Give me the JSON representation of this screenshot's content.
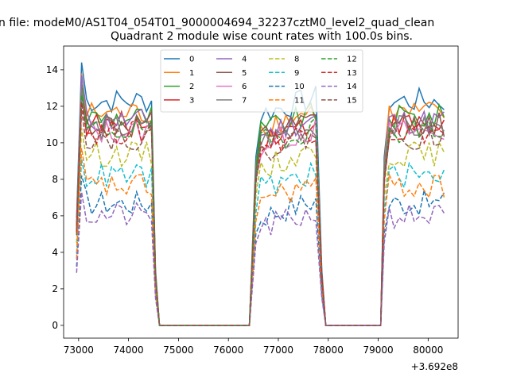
{
  "figure": {
    "suptitle": "n file: modeM0/AS1T04_054T01_9000004694_32237cztM0_level2_quad_clean",
    "title": "Quadrant 2 module wise count rates with 100.0s bins.",
    "offset_label": "+3.692e8"
  },
  "chart_data": {
    "type": "line",
    "xlim": [
      72700,
      80600
    ],
    "ylim": [
      -0.7,
      15.3
    ],
    "xticks": [
      73000,
      74000,
      75000,
      76000,
      77000,
      78000,
      79000,
      80000
    ],
    "xtick_labels": [
      "73000",
      "74000",
      "75000",
      "76000",
      "77000",
      "78000",
      "79000",
      "80000"
    ],
    "yticks": [
      0,
      2,
      4,
      6,
      8,
      10,
      12,
      14
    ],
    "ytick_labels": [
      "0",
      "2",
      "4",
      "6",
      "8",
      "10",
      "12",
      "14"
    ],
    "grid": false,
    "legend_placement": "upper-center",
    "x_offset_note": "x values shown relative to 3.692e8",
    "segments": [
      {
        "on_start": 72960,
        "on_end": 74460,
        "off_end": 76510
      },
      {
        "on_start": 76550,
        "on_end": 77790,
        "off_end": 79070
      },
      {
        "on_start": 79120,
        "on_end": 80320,
        "off_end": null
      }
    ],
    "series": [
      {
        "name": "0",
        "color": "#1f77b4",
        "dash": "solid",
        "level": 12.3,
        "peak": 14.4
      },
      {
        "name": "1",
        "color": "#ff7f0e",
        "dash": "solid",
        "level": 11.6,
        "peak": 13.8
      },
      {
        "name": "2",
        "color": "#2ca02c",
        "dash": "solid",
        "level": 11.4,
        "peak": 13.2
      },
      {
        "name": "3",
        "color": "#d62728",
        "dash": "solid",
        "level": 11.0,
        "peak": 12.8
      },
      {
        "name": "4",
        "color": "#9467bd",
        "dash": "solid",
        "level": 11.2,
        "peak": 13.7
      },
      {
        "name": "5",
        "color": "#8c564b",
        "dash": "solid",
        "level": 11.0,
        "peak": 12.6
      },
      {
        "name": "6",
        "color": "#e377c2",
        "dash": "solid",
        "level": 10.6,
        "peak": 12.4
      },
      {
        "name": "7",
        "color": "#7f7f7f",
        "dash": "solid",
        "level": 10.8,
        "peak": 12.9
      },
      {
        "name": "8",
        "color": "#bcbd22",
        "dash": "dashed",
        "level": 9.4,
        "peak": 10.8
      },
      {
        "name": "9",
        "color": "#17becf",
        "dash": "dashed",
        "level": 8.2,
        "peak": 9.1
      },
      {
        "name": "10",
        "color": "#1f77b4",
        "dash": "dashed",
        "level": 6.7,
        "peak": 8.2
      },
      {
        "name": "11",
        "color": "#ff7f0e",
        "dash": "dashed",
        "level": 7.6,
        "peak": 9.7
      },
      {
        "name": "12",
        "color": "#2ca02c",
        "dash": "dashed",
        "level": 10.7,
        "peak": 12.6
      },
      {
        "name": "13",
        "color": "#d62728",
        "dash": "dashed",
        "level": 10.6,
        "peak": 12.2
      },
      {
        "name": "14",
        "color": "#9467bd",
        "dash": "dashed",
        "level": 6.0,
        "peak": 7.3
      },
      {
        "name": "15",
        "color": "#8c564b",
        "dash": "dashed",
        "level": 10.3,
        "peak": 11.8
      }
    ],
    "bin_seconds": 100
  }
}
